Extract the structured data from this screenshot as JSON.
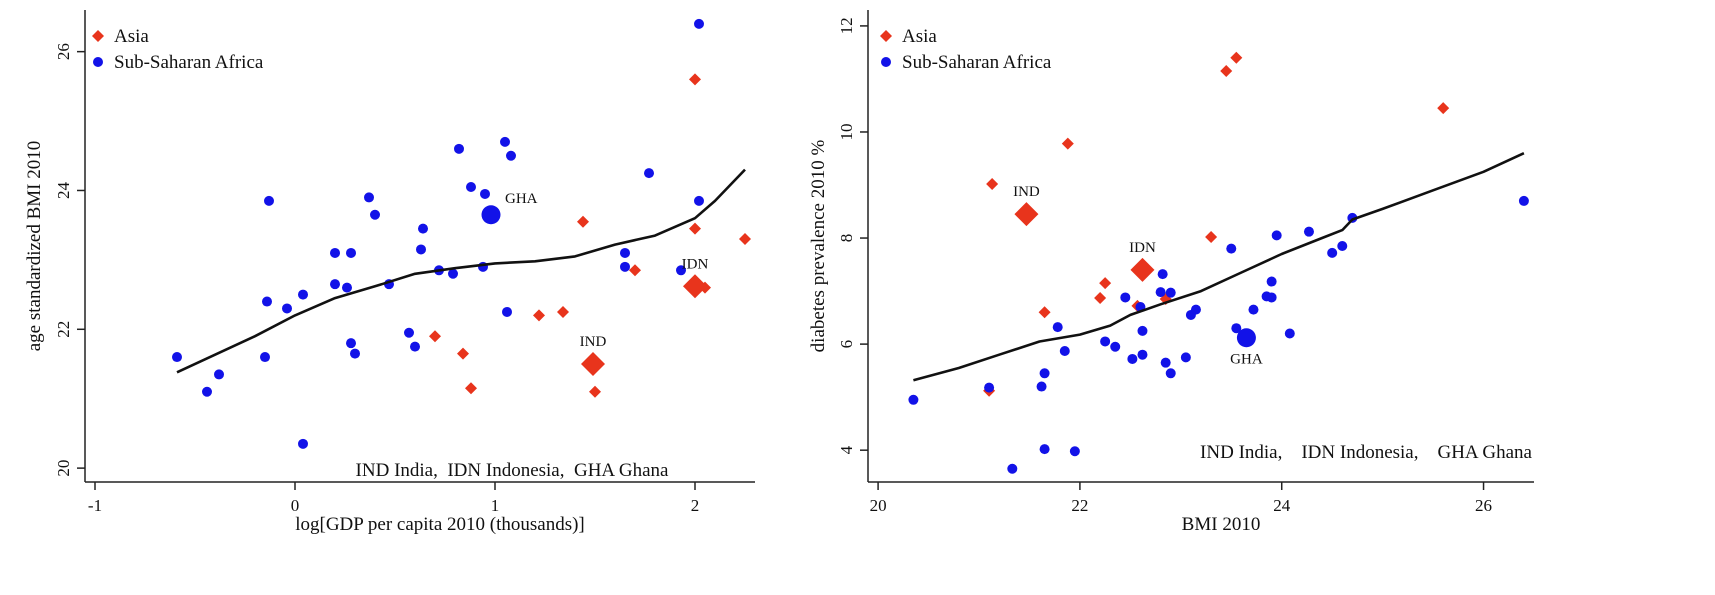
{
  "colors": {
    "asia": "#e8341c",
    "africa": "#1212e8",
    "line": "#111111"
  },
  "chart_data": [
    {
      "type": "scatter",
      "xlabel": "log[GDP per capita 2010 (thousands)]",
      "ylabel": "age standardized BMI 2010",
      "xlim": [
        -1.05,
        2.3
      ],
      "ylim": [
        19.8,
        26.6
      ],
      "xticks": [
        -1,
        0,
        1,
        2
      ],
      "yticks": [
        20,
        22,
        24,
        26
      ],
      "legend": {
        "position": "top-left",
        "entries": [
          {
            "name": "Asia",
            "marker": "diamond"
          },
          {
            "name": "Sub-Saharan Africa",
            "marker": "circle"
          }
        ]
      },
      "footnote": "IND India,  IDN Indonesia,  GHA Ghana",
      "series": [
        {
          "name": "Asia",
          "marker": "diamond",
          "points": [
            [
              2.0,
              25.6
            ],
            [
              1.44,
              23.55
            ],
            [
              2.0,
              23.45
            ],
            [
              2.25,
              23.3
            ],
            [
              1.7,
              22.85
            ],
            [
              2.05,
              22.6
            ],
            [
              1.22,
              22.2
            ],
            [
              1.34,
              22.25
            ],
            [
              0.7,
              21.9
            ],
            [
              0.84,
              21.65
            ],
            [
              0.88,
              21.15
            ],
            [
              1.5,
              21.1
            ]
          ]
        },
        {
          "name": "Sub-Saharan Africa",
          "marker": "circle",
          "points": [
            [
              2.02,
              26.4
            ],
            [
              1.05,
              24.7
            ],
            [
              1.08,
              24.5
            ],
            [
              0.82,
              24.6
            ],
            [
              1.77,
              24.25
            ],
            [
              0.88,
              24.05
            ],
            [
              0.95,
              23.95
            ],
            [
              0.37,
              23.9
            ],
            [
              -0.13,
              23.85
            ],
            [
              2.02,
              23.85
            ],
            [
              0.4,
              23.65
            ],
            [
              0.64,
              23.45
            ],
            [
              0.2,
              23.1
            ],
            [
              0.28,
              23.1
            ],
            [
              0.63,
              23.15
            ],
            [
              1.65,
              23.1
            ],
            [
              0.72,
              22.85
            ],
            [
              0.94,
              22.9
            ],
            [
              1.65,
              22.9
            ],
            [
              0.79,
              22.8
            ],
            [
              1.93,
              22.85
            ],
            [
              0.2,
              22.65
            ],
            [
              0.26,
              22.6
            ],
            [
              0.47,
              22.65
            ],
            [
              0.04,
              22.5
            ],
            [
              -0.14,
              22.4
            ],
            [
              -0.04,
              22.3
            ],
            [
              1.06,
              22.25
            ],
            [
              0.57,
              21.95
            ],
            [
              0.28,
              21.8
            ],
            [
              0.6,
              21.75
            ],
            [
              0.3,
              21.65
            ],
            [
              -0.59,
              21.6
            ],
            [
              -0.15,
              21.6
            ],
            [
              -0.38,
              21.35
            ],
            [
              -0.44,
              21.1
            ],
            [
              0.04,
              20.35
            ]
          ]
        }
      ],
      "highlighted": [
        {
          "label": "IND",
          "group": "Asia",
          "marker": "diamond",
          "x": 1.49,
          "y": 21.5,
          "label_anchor": "above"
        },
        {
          "label": "IDN",
          "group": "Asia",
          "marker": "diamond",
          "x": 2.0,
          "y": 22.62,
          "label_anchor": "above"
        },
        {
          "label": "GHA",
          "group": "Sub-Saharan Africa",
          "marker": "circle",
          "x": 0.98,
          "y": 23.65,
          "label_anchor": "upper-right"
        }
      ],
      "fit_line": {
        "name": "lowess fit",
        "points": [
          [
            -0.59,
            21.38
          ],
          [
            -0.2,
            21.9
          ],
          [
            0.0,
            22.2
          ],
          [
            0.2,
            22.45
          ],
          [
            0.4,
            22.62
          ],
          [
            0.6,
            22.8
          ],
          [
            0.8,
            22.88
          ],
          [
            1.0,
            22.95
          ],
          [
            1.2,
            22.98
          ],
          [
            1.4,
            23.05
          ],
          [
            1.6,
            23.22
          ],
          [
            1.8,
            23.35
          ],
          [
            2.0,
            23.6
          ],
          [
            2.1,
            23.85
          ],
          [
            2.25,
            24.3
          ]
        ]
      }
    },
    {
      "type": "scatter",
      "xlabel": "BMI 2010",
      "ylabel": "diabetes prevalence 2010 %",
      "xlim": [
        19.9,
        26.5
      ],
      "ylim": [
        3.4,
        12.3
      ],
      "xticks": [
        20,
        22,
        24,
        26
      ],
      "yticks": [
        4,
        6,
        8,
        10,
        12
      ],
      "legend": {
        "position": "top-left",
        "entries": [
          {
            "name": "Asia",
            "marker": "diamond"
          },
          {
            "name": "Sub-Saharan Africa",
            "marker": "circle"
          }
        ]
      },
      "footnote": "IND India,    IDN Indonesia,    GHA Ghana",
      "series": [
        {
          "name": "Asia",
          "marker": "diamond",
          "points": [
            [
              23.55,
              11.4
            ],
            [
              23.45,
              11.15
            ],
            [
              25.6,
              10.45
            ],
            [
              21.88,
              9.78
            ],
            [
              21.13,
              9.02
            ],
            [
              23.3,
              8.02
            ],
            [
              22.25,
              7.15
            ],
            [
              22.2,
              6.87
            ],
            [
              22.57,
              6.72
            ],
            [
              22.85,
              6.85
            ],
            [
              21.65,
              6.6
            ],
            [
              21.1,
              5.12
            ]
          ]
        },
        {
          "name": "Sub-Saharan Africa",
          "marker": "circle",
          "points": [
            [
              26.4,
              8.7
            ],
            [
              24.7,
              8.38
            ],
            [
              24.27,
              8.12
            ],
            [
              23.95,
              8.05
            ],
            [
              24.6,
              7.85
            ],
            [
              24.5,
              7.72
            ],
            [
              23.5,
              7.8
            ],
            [
              22.82,
              7.32
            ],
            [
              23.9,
              7.18
            ],
            [
              22.8,
              6.98
            ],
            [
              22.9,
              6.97
            ],
            [
              23.85,
              6.9
            ],
            [
              23.9,
              6.88
            ],
            [
              22.45,
              6.88
            ],
            [
              23.15,
              6.65
            ],
            [
              23.1,
              6.55
            ],
            [
              23.72,
              6.65
            ],
            [
              22.6,
              6.7
            ],
            [
              21.78,
              6.32
            ],
            [
              23.55,
              6.3
            ],
            [
              22.62,
              6.25
            ],
            [
              24.08,
              6.2
            ],
            [
              22.25,
              6.05
            ],
            [
              22.35,
              5.95
            ],
            [
              21.85,
              5.87
            ],
            [
              22.62,
              5.8
            ],
            [
              22.52,
              5.72
            ],
            [
              23.05,
              5.75
            ],
            [
              22.85,
              5.65
            ],
            [
              22.9,
              5.45
            ],
            [
              21.65,
              5.45
            ],
            [
              21.62,
              5.2
            ],
            [
              21.1,
              5.18
            ],
            [
              20.35,
              4.95
            ],
            [
              21.65,
              4.02
            ],
            [
              21.95,
              3.98
            ],
            [
              21.33,
              3.65
            ]
          ]
        }
      ],
      "highlighted": [
        {
          "label": "IND",
          "group": "Asia",
          "marker": "diamond",
          "x": 21.47,
          "y": 8.45,
          "label_anchor": "above"
        },
        {
          "label": "IDN",
          "group": "Asia",
          "marker": "diamond",
          "x": 22.62,
          "y": 7.4,
          "label_anchor": "above"
        },
        {
          "label": "GHA",
          "group": "Sub-Saharan Africa",
          "marker": "circle",
          "x": 23.65,
          "y": 6.12,
          "label_anchor": "below"
        }
      ],
      "fit_line": {
        "name": "lowess fit",
        "points": [
          [
            20.35,
            5.32
          ],
          [
            20.8,
            5.55
          ],
          [
            21.2,
            5.8
          ],
          [
            21.6,
            6.05
          ],
          [
            22.0,
            6.18
          ],
          [
            22.3,
            6.35
          ],
          [
            22.5,
            6.55
          ],
          [
            22.8,
            6.75
          ],
          [
            23.2,
            7.0
          ],
          [
            23.6,
            7.35
          ],
          [
            24.0,
            7.7
          ],
          [
            24.4,
            8.0
          ],
          [
            24.6,
            8.15
          ],
          [
            24.7,
            8.35
          ],
          [
            25.0,
            8.55
          ],
          [
            25.5,
            8.9
          ],
          [
            26.0,
            9.25
          ],
          [
            26.4,
            9.6
          ]
        ]
      }
    }
  ]
}
